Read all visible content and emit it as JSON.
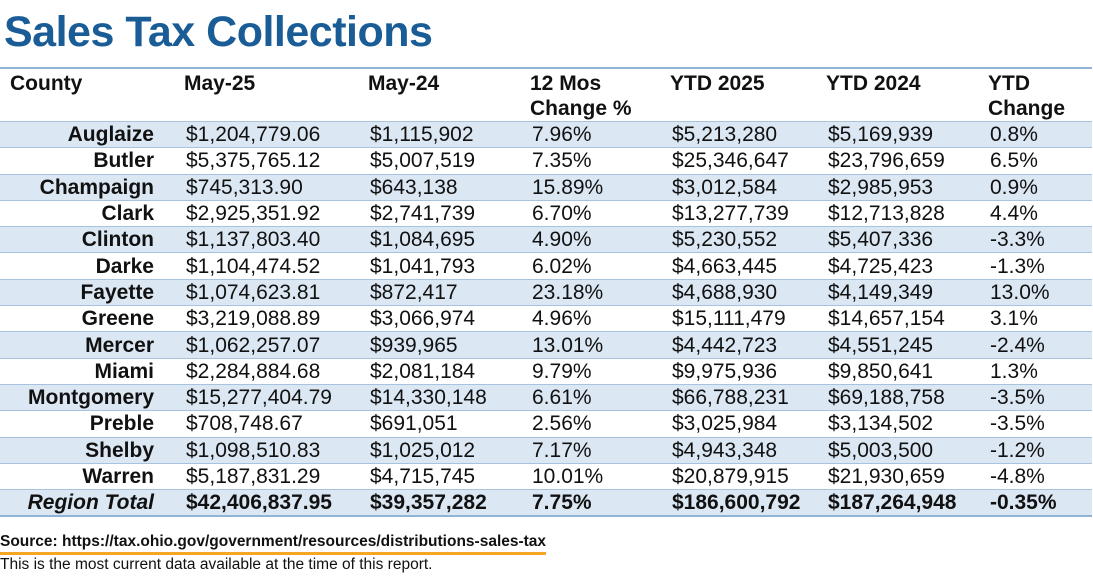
{
  "title": "Sales Tax Collections",
  "headers": [
    "County",
    "May-25",
    "May-24",
    "12 Mos Change %",
    "YTD 2025",
    "YTD 2024",
    "YTD Change"
  ],
  "rows": [
    [
      "Auglaize",
      "$1,204,779.06",
      "$1,115,902",
      "7.96%",
      "$5,213,280",
      "$5,169,939",
      "0.8%"
    ],
    [
      "Butler",
      "$5,375,765.12",
      "$5,007,519",
      "7.35%",
      "$25,346,647",
      "$23,796,659",
      "6.5%"
    ],
    [
      "Champaign",
      "$745,313.90",
      "$643,138",
      "15.89%",
      "$3,012,584",
      "$2,985,953",
      "0.9%"
    ],
    [
      "Clark",
      "$2,925,351.92",
      "$2,741,739",
      "6.70%",
      "$13,277,739",
      "$12,713,828",
      "4.4%"
    ],
    [
      "Clinton",
      "$1,137,803.40",
      "$1,084,695",
      "4.90%",
      "$5,230,552",
      "$5,407,336",
      "-3.3%"
    ],
    [
      "Darke",
      "$1,104,474.52",
      "$1,041,793",
      "6.02%",
      "$4,663,445",
      "$4,725,423",
      "-1.3%"
    ],
    [
      "Fayette",
      "$1,074,623.81",
      "$872,417",
      "23.18%",
      "$4,688,930",
      "$4,149,349",
      "13.0%"
    ],
    [
      "Greene",
      "$3,219,088.89",
      "$3,066,974",
      "4.96%",
      "$15,111,479",
      "$14,657,154",
      "3.1%"
    ],
    [
      "Mercer",
      "$1,062,257.07",
      "$939,965",
      "13.01%",
      "$4,442,723",
      "$4,551,245",
      "-2.4%"
    ],
    [
      "Miami",
      "$2,284,884.68",
      "$2,081,184",
      "9.79%",
      "$9,975,936",
      "$9,850,641",
      "1.3%"
    ],
    [
      "Montgomery",
      "$15,277,404.79",
      "$14,330,148",
      "6.61%",
      "$66,788,231",
      "$69,188,758",
      "-3.5%"
    ],
    [
      "Preble",
      "$708,748.67",
      "$691,051",
      "2.56%",
      "$3,025,984",
      "$3,134,502",
      "-3.5%"
    ],
    [
      "Shelby",
      "$1,098,510.83",
      "$1,025,012",
      "7.17%",
      "$4,943,348",
      "$5,003,500",
      "-1.2%"
    ],
    [
      "Warren",
      "$5,187,831.29",
      "$4,715,745",
      "10.01%",
      "$20,879,915",
      "$21,930,659",
      "-4.8%"
    ]
  ],
  "total": [
    "Region Total",
    "$42,406,837.95",
    "$39,357,282",
    "7.75%",
    "$186,600,792",
    "$187,264,948",
    "-0.35%"
  ],
  "source": "Source: https://tax.ohio.gov/government/resources/distributions-sales-tax",
  "note": "This is the most current data available at the time of this report.",
  "colors": {
    "title": "#1a5d96",
    "row_band": "#dbe7f3",
    "rule": "#8fb4d8",
    "source_underline": "#f5a623"
  }
}
